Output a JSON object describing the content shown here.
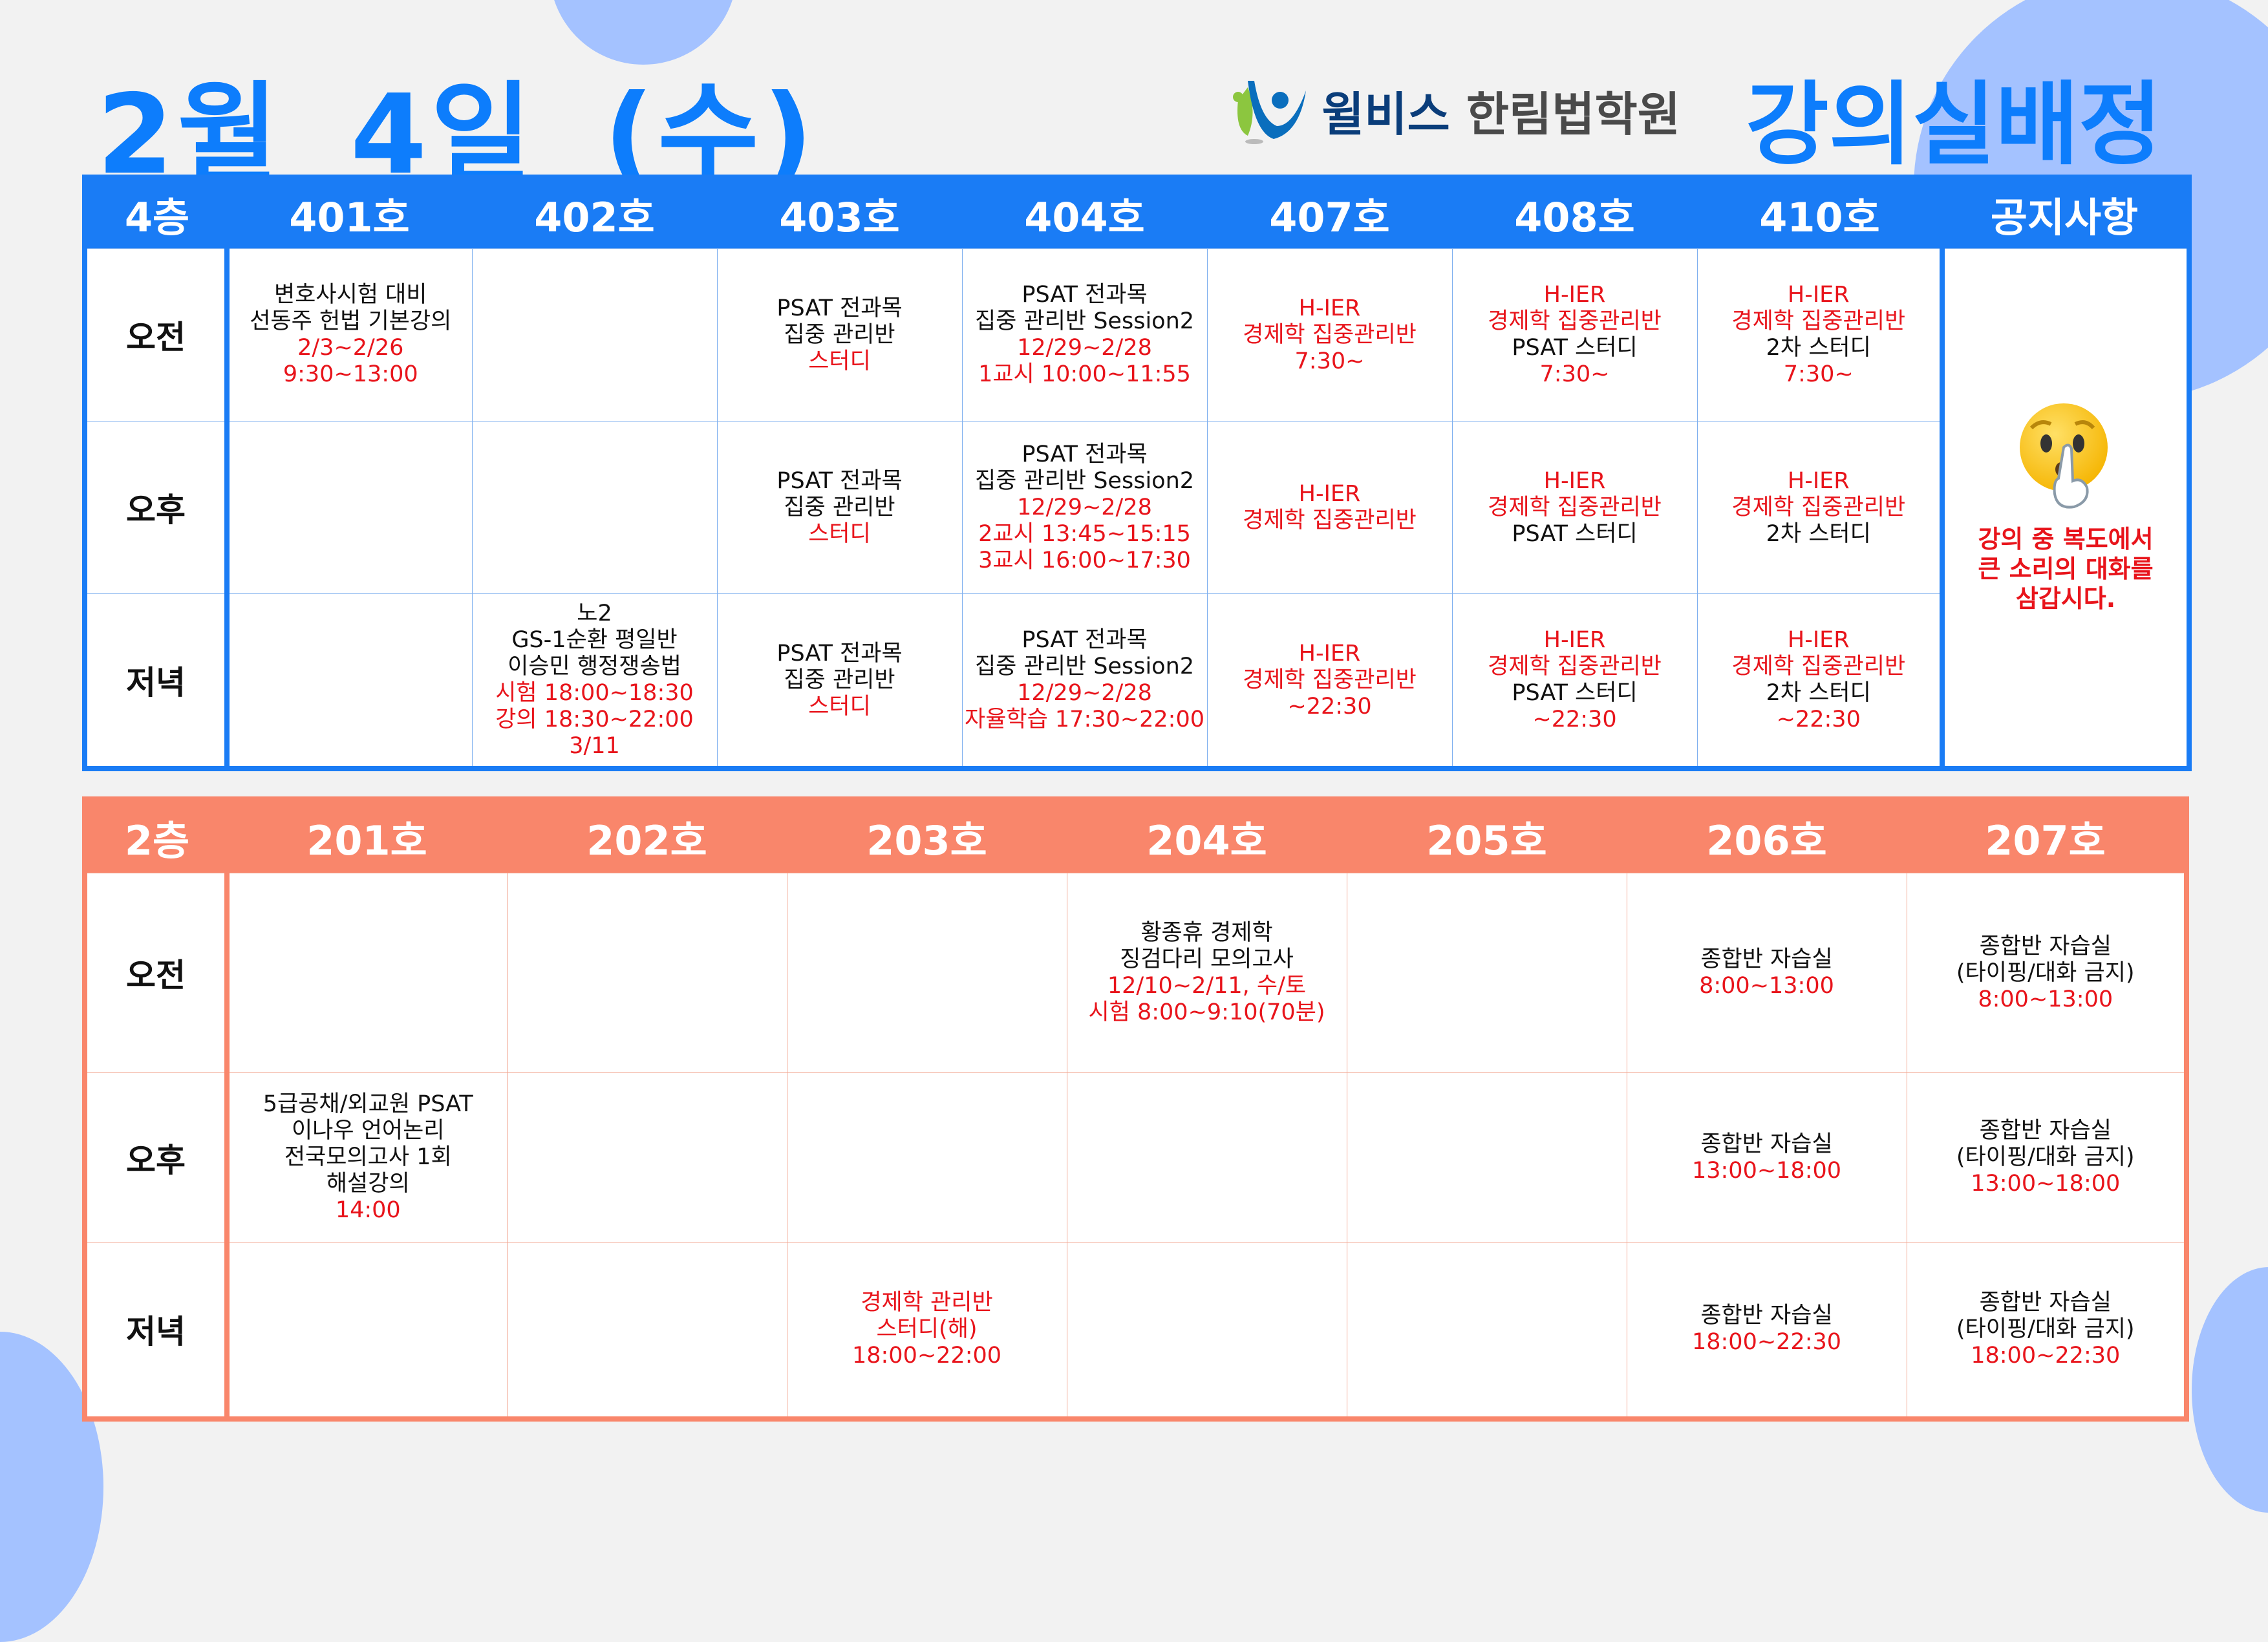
{
  "title": "2월 4일 (수)",
  "brand": {
    "prefix": "윌비스",
    "name": "한림법학원"
  },
  "heading": "강의실배정",
  "colors": {
    "blue": "#1a7cf5",
    "salmon": "#f9866b",
    "red": "#e8141b"
  },
  "periods": [
    "오전",
    "오후",
    "저녁"
  ],
  "floor4": {
    "label": "4층",
    "rooms": [
      "401호",
      "402호",
      "403호",
      "404호",
      "407호",
      "408호",
      "410호"
    ],
    "notice_header": "공지사항",
    "notice_icon": "shushing-face-emoji",
    "notice": [
      "강의 중 복도에서",
      "큰 소리의 대화를",
      "삼갑시다."
    ],
    "cells": [
      [
        [
          {
            "t": "변호사시험 대비"
          },
          {
            "t": "선동주 헌법 기본강의"
          },
          {
            "t": "2/3~2/26",
            "r": 1
          },
          {
            "t": "9:30~13:00",
            "r": 1
          }
        ],
        [],
        [
          {
            "t": "PSAT 전과목"
          },
          {
            "t": "집중 관리반"
          },
          {
            "t": "스터디",
            "r": 1
          }
        ],
        [
          {
            "t": "PSAT 전과목"
          },
          {
            "t": "집중 관리반 Session2"
          },
          {
            "t": "12/29~2/28",
            "r": 1
          },
          {
            "t": "1교시 10:00~11:55",
            "r": 1
          }
        ],
        [
          {
            "t": "H-IER",
            "r": 1
          },
          {
            "t": "경제학 집중관리반",
            "r": 1
          },
          {
            "t": "7:30~",
            "r": 1
          }
        ],
        [
          {
            "t": "H-IER",
            "r": 1
          },
          {
            "t": "경제학 집중관리반",
            "r": 1
          },
          {
            "t": "PSAT 스터디"
          },
          {
            "t": "7:30~",
            "r": 1
          }
        ],
        [
          {
            "t": "H-IER",
            "r": 1
          },
          {
            "t": "경제학 집중관리반",
            "r": 1
          },
          {
            "t": "2차 스터디"
          },
          {
            "t": "7:30~",
            "r": 1
          }
        ]
      ],
      [
        [],
        [],
        [
          {
            "t": "PSAT 전과목"
          },
          {
            "t": "집중 관리반"
          },
          {
            "t": "스터디",
            "r": 1
          }
        ],
        [
          {
            "t": "PSAT 전과목"
          },
          {
            "t": "집중 관리반 Session2"
          },
          {
            "t": "12/29~2/28",
            "r": 1
          },
          {
            "t": "2교시 13:45~15:15",
            "r": 1
          },
          {
            "t": "3교시 16:00~17:30",
            "r": 1
          }
        ],
        [
          {
            "t": "H-IER",
            "r": 1
          },
          {
            "t": "경제학 집중관리반",
            "r": 1
          }
        ],
        [
          {
            "t": "H-IER",
            "r": 1
          },
          {
            "t": "경제학 집중관리반",
            "r": 1
          },
          {
            "t": "PSAT 스터디"
          }
        ],
        [
          {
            "t": "H-IER",
            "r": 1
          },
          {
            "t": "경제학 집중관리반",
            "r": 1
          },
          {
            "t": "2차 스터디"
          }
        ]
      ],
      [
        [],
        [
          {
            "t": "노2"
          },
          {
            "t": "GS-1순환 평일반"
          },
          {
            "t": "이승민 행정쟁송법"
          },
          {
            "t": "시험 18:00~18:30",
            "r": 1
          },
          {
            "t": "강의 18:30~22:00",
            "r": 1
          },
          {
            "t": "3/11",
            "r": 1
          }
        ],
        [
          {
            "t": "PSAT 전과목"
          },
          {
            "t": "집중 관리반"
          },
          {
            "t": "스터디",
            "r": 1
          }
        ],
        [
          {
            "t": "PSAT 전과목"
          },
          {
            "t": "집중 관리반 Session2"
          },
          {
            "t": "12/29~2/28",
            "r": 1
          },
          {
            "t": "자율학습 17:30~22:00",
            "r": 1
          }
        ],
        [
          {
            "t": "H-IER",
            "r": 1
          },
          {
            "t": "경제학 집중관리반",
            "r": 1
          },
          {
            "t": "~22:30",
            "r": 1
          }
        ],
        [
          {
            "t": "H-IER",
            "r": 1
          },
          {
            "t": "경제학 집중관리반",
            "r": 1
          },
          {
            "t": "PSAT 스터디"
          },
          {
            "t": "~22:30",
            "r": 1
          }
        ],
        [
          {
            "t": "H-IER",
            "r": 1
          },
          {
            "t": "경제학 집중관리반",
            "r": 1
          },
          {
            "t": "2차 스터디"
          },
          {
            "t": "~22:30",
            "r": 1
          }
        ]
      ]
    ]
  },
  "floor2": {
    "label": "2층",
    "rooms": [
      "201호",
      "202호",
      "203호",
      "204호",
      "205호",
      "206호",
      "207호"
    ],
    "cells": [
      [
        [],
        [],
        [],
        [
          {
            "t": "황종휴 경제학"
          },
          {
            "t": "징검다리 모의고사"
          },
          {
            "t": "12/10~2/11, 수/토",
            "r": 1
          },
          {
            "t": "시험 8:00~9:10(70분)",
            "r": 1
          }
        ],
        [],
        [
          {
            "t": "종합반 자습실"
          },
          {
            "t": "8:00~13:00",
            "r": 1
          }
        ],
        [
          {
            "t": "종합반 자습실"
          },
          {
            "t": "(타이핑/대화 금지)"
          },
          {
            "t": "8:00~13:00",
            "r": 1
          }
        ]
      ],
      [
        [
          {
            "t": "5급공채/외교원 PSAT"
          },
          {
            "t": "이나우 언어논리"
          },
          {
            "t": "전국모의고사 1회"
          },
          {
            "t": "해설강의"
          },
          {
            "t": "14:00",
            "r": 1
          }
        ],
        [],
        [],
        [],
        [],
        [
          {
            "t": "종합반 자습실"
          },
          {
            "t": "13:00~18:00",
            "r": 1
          }
        ],
        [
          {
            "t": "종합반 자습실"
          },
          {
            "t": "(타이핑/대화 금지)"
          },
          {
            "t": "13:00~18:00",
            "r": 1
          }
        ]
      ],
      [
        [],
        [],
        [
          {
            "t": "경제학 관리반",
            "r": 1
          },
          {
            "t": "스터디(해)",
            "r": 1
          },
          {
            "t": "18:00~22:00",
            "r": 1
          }
        ],
        [],
        [],
        [
          {
            "t": "종합반 자습실"
          },
          {
            "t": "18:00~22:30",
            "r": 1
          }
        ],
        [
          {
            "t": "종합반 자습실"
          },
          {
            "t": "(타이핑/대화 금지)"
          },
          {
            "t": "18:00~22:30",
            "r": 1
          }
        ]
      ]
    ]
  }
}
